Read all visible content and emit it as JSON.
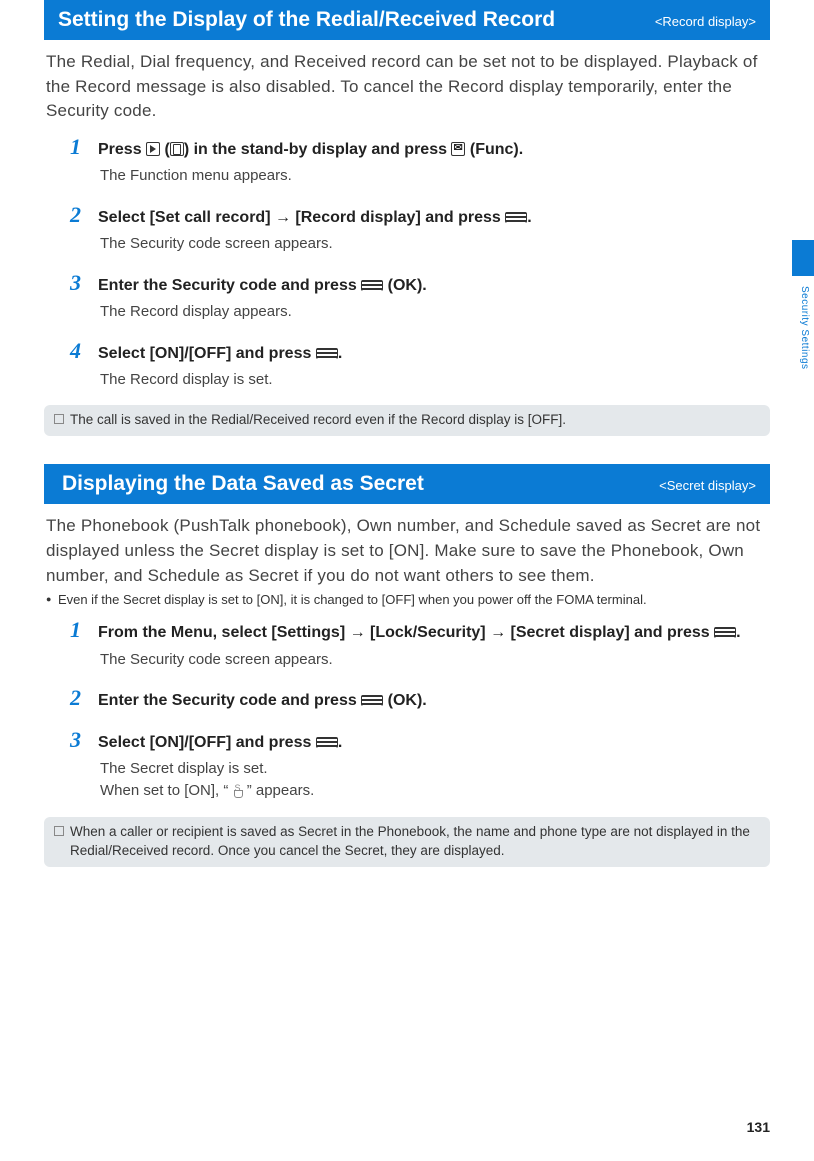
{
  "colors": {
    "accent": "#0b7bd4",
    "note_bg": "#e4e8eb",
    "text": "#333333",
    "body_bg": "#ffffff"
  },
  "side": {
    "label": "Security Settings"
  },
  "page_number": "131",
  "section1": {
    "title": "Setting the Display of the Redial/Received Record",
    "tag": "<Record display>",
    "intro": "The Redial, Dial frequency, and Received record can be set not to be displayed. Playback of the Record message is also disabled. To cancel the Record display temporarily, enter the Security code.",
    "steps": [
      {
        "num": "1",
        "title_pre": "Press ",
        "title_mid1": " (",
        "title_mid2": ") in the stand-by display and press ",
        "title_post": " (Func).",
        "body": "The Function menu appears."
      },
      {
        "num": "2",
        "title_pre": "Select [Set call record] → [Record display] and press ",
        "title_post": ".",
        "body": "The Security code screen appears."
      },
      {
        "num": "3",
        "title_pre": "Enter the Security code and press ",
        "title_post": " (OK).",
        "body": "The Record display appears."
      },
      {
        "num": "4",
        "title_pre": "Select [ON]/[OFF] and press ",
        "title_post": ".",
        "body": "The Record display is set."
      }
    ],
    "note": "The call is saved in the Redial/Received record even if the Record display is [OFF]."
  },
  "section2": {
    "title": "Displaying the Data Saved as Secret",
    "tag": "<Secret display>",
    "intro": "The Phonebook (PushTalk phonebook), Own number, and Schedule saved as Secret are not displayed unless the Secret display is set to [ON]. Make sure to save the Phonebook, Own number, and Schedule as Secret if you do not want others to see them.",
    "sub_bullet": "Even if the Secret display is set to [ON], it is changed to [OFF] when you power off the FOMA terminal.",
    "steps": [
      {
        "num": "1",
        "title_pre": "From the Menu, select [Settings] → [Lock/Security] → [Secret display] and press ",
        "title_post": ".",
        "body": "The Security code screen appears."
      },
      {
        "num": "2",
        "title_pre": "Enter the Security code and press ",
        "title_post": " (OK).",
        "body": ""
      },
      {
        "num": "3",
        "title_pre": "Select [ON]/[OFF] and press ",
        "title_post": ".",
        "body1": "The Secret display is set.",
        "body2_pre": "When set to [ON], “ ",
        "body2_post": " ” appears."
      }
    ],
    "note": "When a caller or recipient is saved as Secret in the Phonebook, the name and phone type are not displayed in the Redial/Received record. Once you cancel the Secret, they are displayed."
  }
}
